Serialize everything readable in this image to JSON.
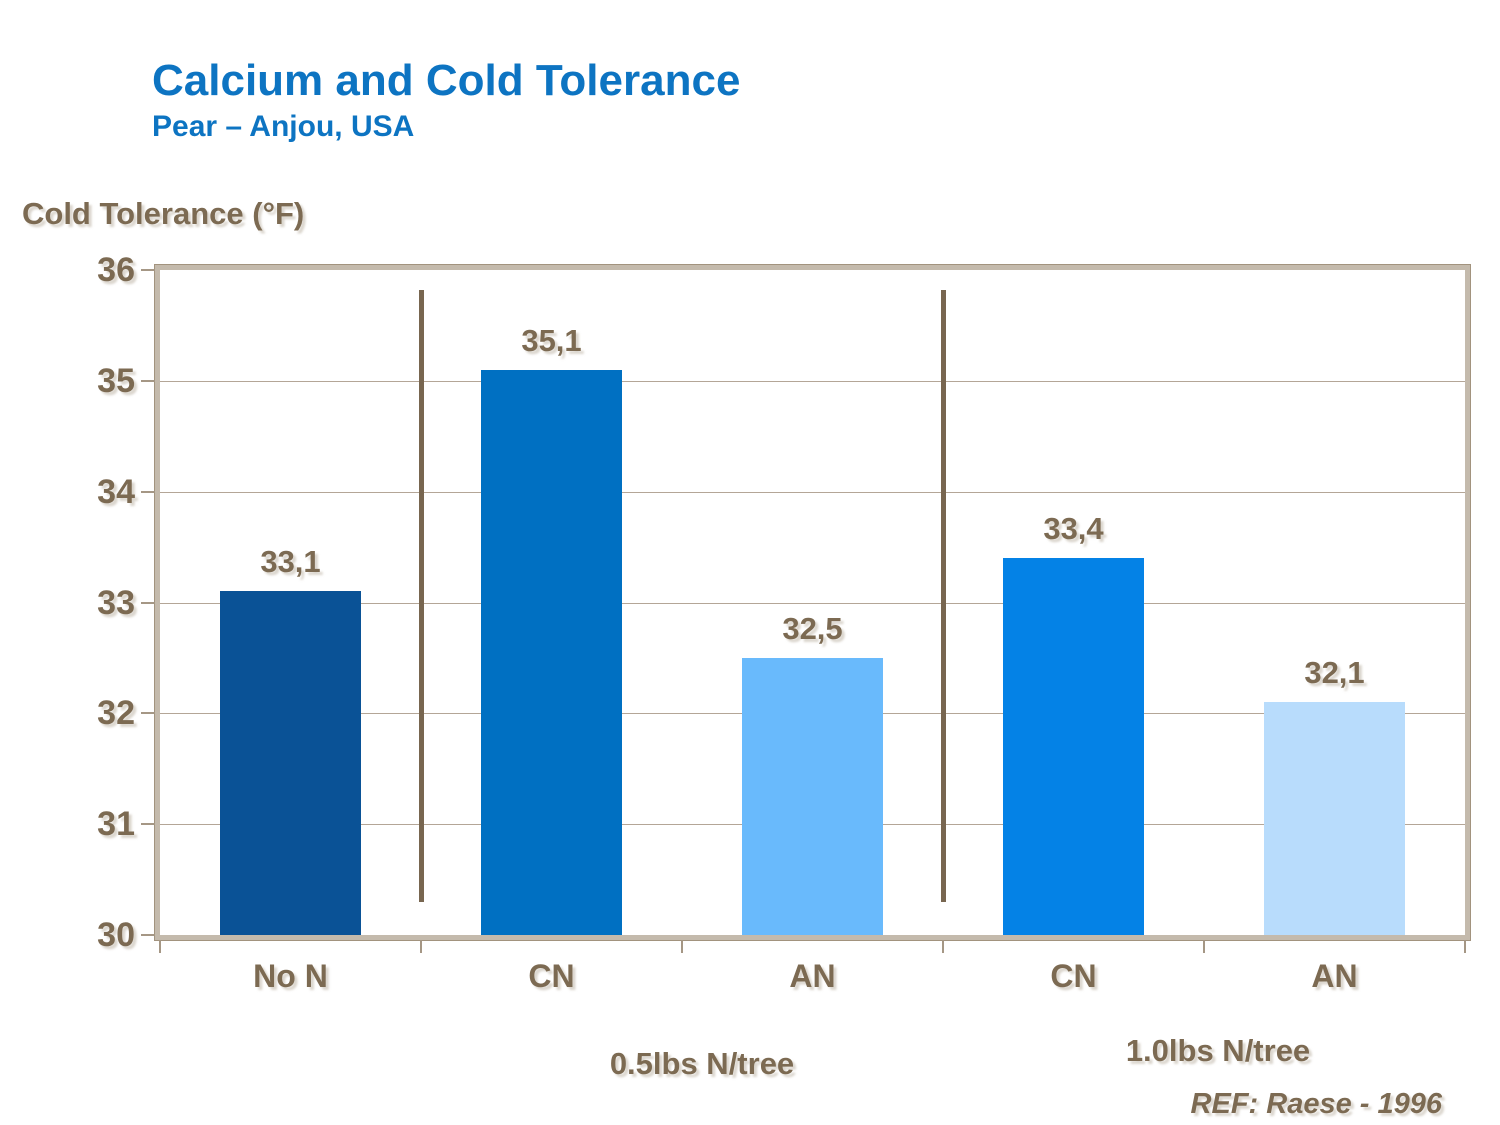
{
  "chart_data": {
    "type": "bar",
    "title": "Calcium and Cold Tolerance",
    "subtitle": "Pear – Anjou, USA",
    "ylabel": "Cold Tolerance (°F)",
    "xlabel": "",
    "ylim": [
      30,
      36
    ],
    "yticks": [
      30,
      31,
      32,
      33,
      34,
      35,
      36
    ],
    "grid": true,
    "legend": false,
    "categories": [
      "No N",
      "CN",
      "AN",
      "CN",
      "AN"
    ],
    "values": [
      33.1,
      35.1,
      32.5,
      33.4,
      32.1
    ],
    "value_labels": [
      "33,1",
      "35,1",
      "32,5",
      "33,4",
      "32,1"
    ],
    "bar_colors": [
      "#0a5296",
      "#0070c2",
      "#69bafc",
      "#0482e6",
      "#b8dcfc"
    ],
    "groups": [
      {
        "label": "0.5lbs N/tree",
        "category_indexes": [
          1,
          2
        ]
      },
      {
        "label": "1.0lbs N/tree",
        "category_indexes": [
          3,
          4
        ]
      }
    ],
    "separator_boundaries": [
      1,
      3
    ],
    "reference": "REF: Raese - 1996"
  },
  "colors": {
    "title_blue": "#0d74c2",
    "label_brown": "#7c6a52",
    "frame_tan": "#c4baac",
    "frame_edge": "#a2937e",
    "gridline": "#b4a697",
    "separator_brown": "#786650",
    "tick": "#a59785",
    "background": "#ffffff"
  }
}
